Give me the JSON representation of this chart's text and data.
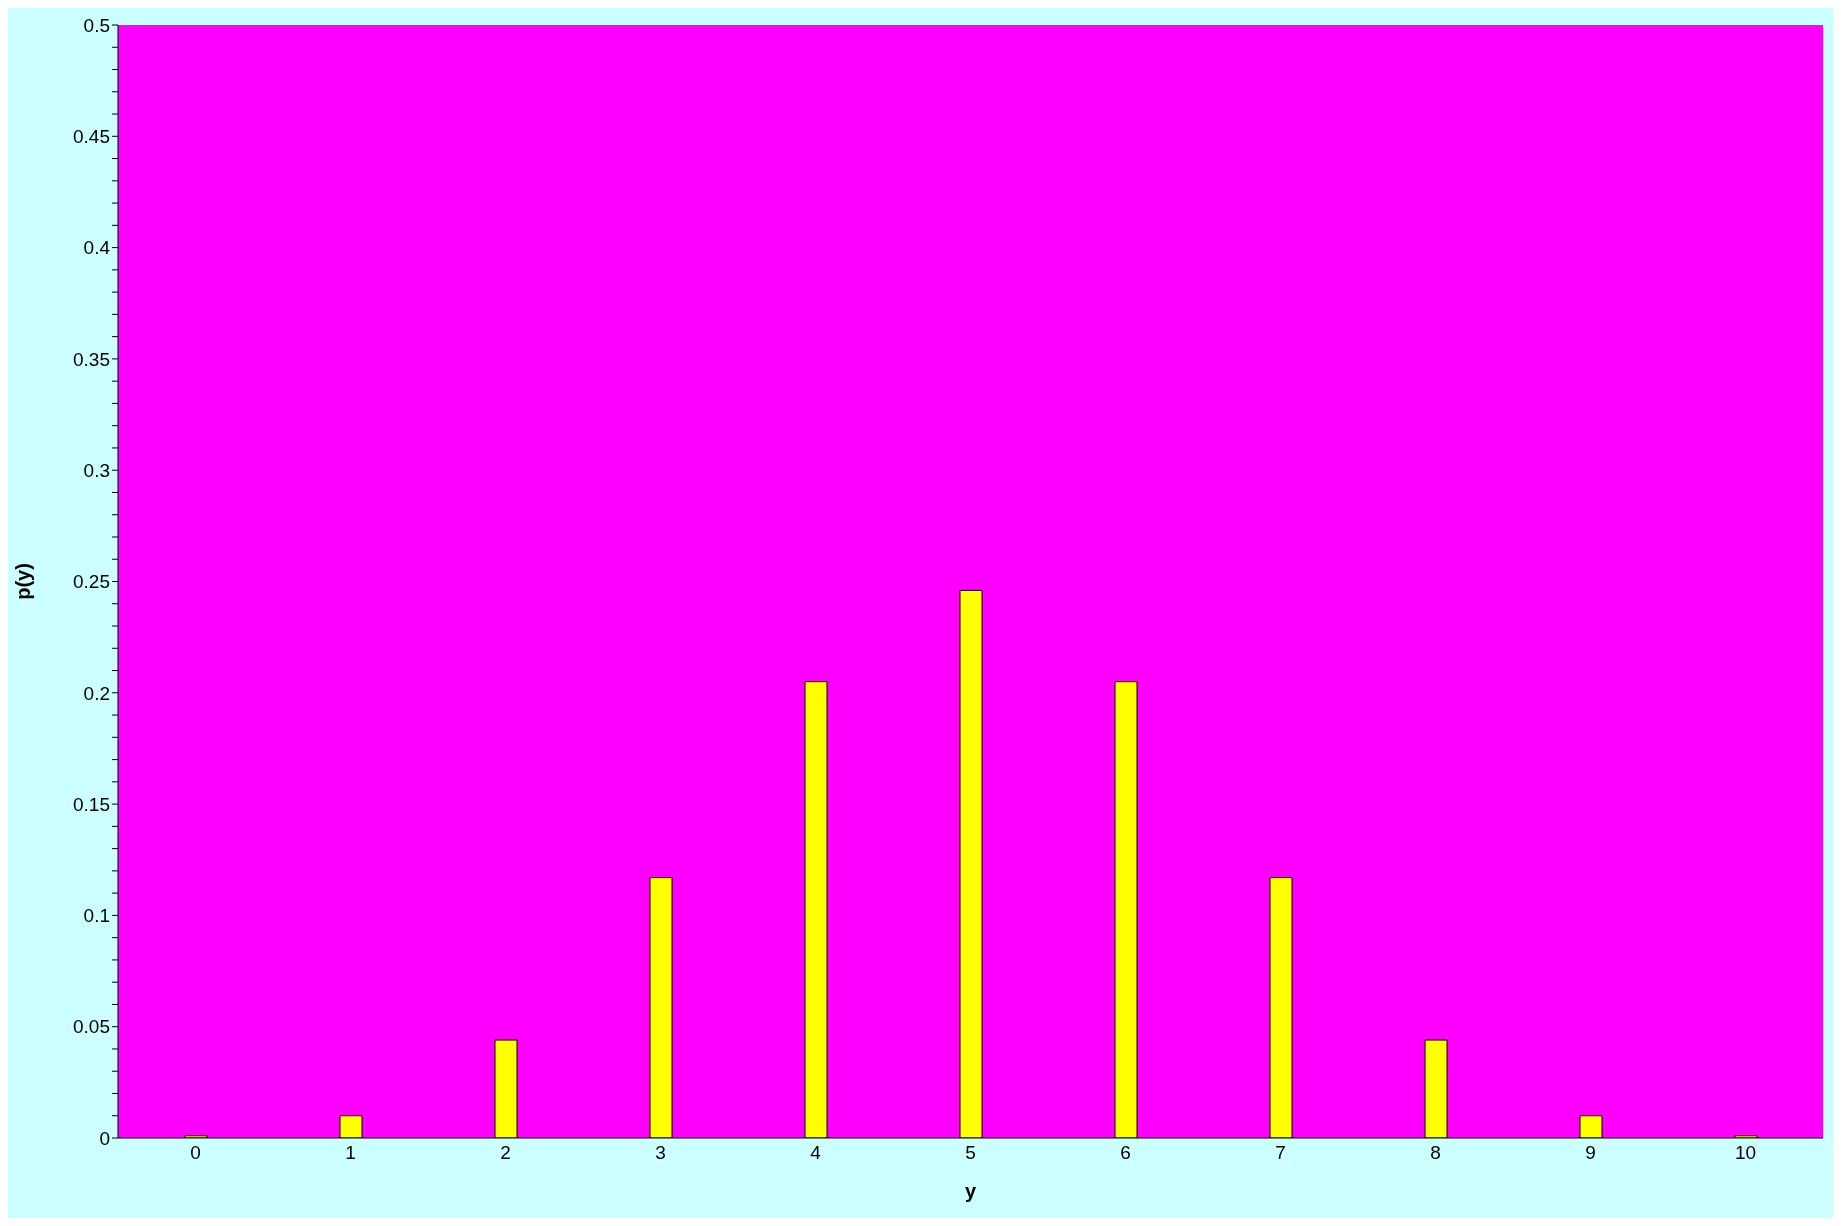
{
  "chart_data": {
    "type": "bar",
    "xlabel": "y",
    "ylabel": "p(y)",
    "categories": [
      "0",
      "1",
      "2",
      "3",
      "4",
      "5",
      "6",
      "7",
      "8",
      "9",
      "10"
    ],
    "values": [
      0.001,
      0.01,
      0.044,
      0.117,
      0.205,
      0.246,
      0.205,
      0.117,
      0.044,
      0.01,
      0.001
    ],
    "color": "#ffff00",
    "ylim": [
      0,
      0.5
    ],
    "yticks": [
      0,
      {
        "value": 0.01,
        "label": null
      },
      {
        "value": 0.02,
        "label": null
      },
      {
        "value": 0.03,
        "label": null
      },
      {
        "value": 0.04,
        "label": null
      },
      0.05,
      {
        "value": 0.06,
        "label": null
      },
      {
        "value": 0.07,
        "label": null
      },
      {
        "value": 0.08,
        "label": null
      },
      {
        "value": 0.09,
        "label": null
      },
      0.1,
      {
        "value": 0.11,
        "label": null
      },
      {
        "value": 0.12,
        "label": null
      },
      {
        "value": 0.13,
        "label": null
      },
      {
        "value": 0.14,
        "label": null
      },
      0.15,
      {
        "value": 0.16,
        "label": null
      },
      {
        "value": 0.17,
        "label": null
      },
      {
        "value": 0.18,
        "label": null
      },
      {
        "value": 0.19,
        "label": null
      },
      0.2,
      {
        "value": 0.21,
        "label": null
      },
      {
        "value": 0.22,
        "label": null
      },
      {
        "value": 0.23,
        "label": null
      },
      {
        "value": 0.24,
        "label": null
      },
      0.25,
      {
        "value": 0.26,
        "label": null
      },
      {
        "value": 0.27,
        "label": null
      },
      {
        "value": 0.28,
        "label": null
      },
      {
        "value": 0.29,
        "label": null
      },
      0.3,
      {
        "value": 0.31,
        "label": null
      },
      {
        "value": 0.32,
        "label": null
      },
      {
        "value": 0.33,
        "label": null
      },
      {
        "value": 0.34,
        "label": null
      },
      0.35,
      {
        "value": 0.36,
        "label": null
      },
      {
        "value": 0.37,
        "label": null
      },
      {
        "value": 0.38,
        "label": null
      },
      {
        "value": 0.39,
        "label": null
      },
      0.4,
      {
        "value": 0.41,
        "label": null
      },
      {
        "value": 0.42,
        "label": null
      },
      {
        "value": 0.43,
        "label": null
      },
      {
        "value": 0.44,
        "label": null
      },
      0.45,
      {
        "value": 0.46,
        "label": null
      },
      {
        "value": 0.47,
        "label": null
      },
      {
        "value": 0.48,
        "label": null
      },
      {
        "value": 0.49,
        "label": null
      },
      0.5
    ],
    "grid": false,
    "legend": false
  }
}
